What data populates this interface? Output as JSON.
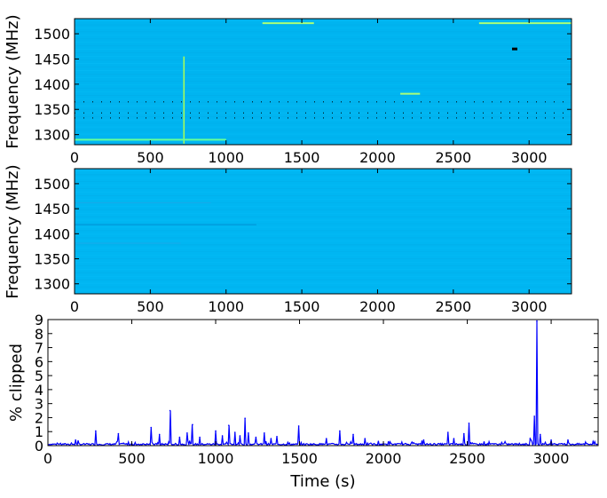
{
  "figure": {
    "top": {
      "ylabel": "Frequency (MHz)",
      "xticks": [
        "0",
        "500",
        "1000",
        "1500",
        "2000",
        "2500",
        "3000"
      ],
      "yticks": [
        "1300",
        "1350",
        "1400",
        "1450",
        "1500"
      ]
    },
    "middle": {
      "ylabel": "Frequency (MHz)",
      "xticks": [
        "0",
        "500",
        "1000",
        "1500",
        "2000",
        "2500",
        "3000"
      ],
      "yticks": [
        "1300",
        "1350",
        "1400",
        "1450",
        "1500"
      ]
    },
    "bottom": {
      "ylabel": "% clipped",
      "xlabel": "Time (s)",
      "xticks": [
        "0",
        "500",
        "1000",
        "1500",
        "2000",
        "2500",
        "3000"
      ],
      "yticks": [
        "0",
        "1",
        "2",
        "3",
        "4",
        "5",
        "6",
        "7",
        "8",
        "9"
      ]
    }
  },
  "chart_data": [
    {
      "type": "heatmap",
      "title": "",
      "xlabel": "",
      "ylabel": "Frequency (MHz)",
      "xlim": [
        0,
        3280
      ],
      "ylim": [
        1280,
        1530
      ],
      "xticks": [
        0,
        500,
        1000,
        1500,
        2000,
        2500,
        3000
      ],
      "yticks": [
        1300,
        1350,
        1400,
        1450,
        1500
      ],
      "background_color": "#00b4f0",
      "features": [
        {
          "kind": "vertical_line",
          "x": 722,
          "y_from": 1282,
          "y_to": 1455,
          "color": "#aaff55"
        },
        {
          "kind": "horizontal_band",
          "x_from": 0,
          "x_to": 1000,
          "y": 1290,
          "color": "#66ff99"
        },
        {
          "kind": "horizontal_band",
          "x_from": 1240,
          "x_to": 1580,
          "y": 1521,
          "color": "#aaff77"
        },
        {
          "kind": "horizontal_band",
          "x_from": 2670,
          "x_to": 3280,
          "y": 1521,
          "color": "#aaff77"
        },
        {
          "kind": "horizontal_band",
          "x_from": 2150,
          "x_to": 2280,
          "y": 1381,
          "color": "#aaff77"
        },
        {
          "kind": "dotted_line",
          "x_from": 0,
          "x_to": 3280,
          "y": 1365,
          "color": "#000000"
        },
        {
          "kind": "dotted_line",
          "x_from": 0,
          "x_to": 3280,
          "y": 1343,
          "color": "#000000"
        },
        {
          "kind": "dotted_line",
          "x_from": 0,
          "x_to": 3280,
          "y": 1333,
          "color": "#000000"
        },
        {
          "kind": "spot",
          "x": 2905,
          "y": 1469,
          "color": "#000000"
        }
      ]
    },
    {
      "type": "heatmap",
      "title": "",
      "xlabel": "",
      "ylabel": "Frequency (MHz)",
      "xlim": [
        0,
        3280
      ],
      "ylim": [
        1280,
        1530
      ],
      "xticks": [
        0,
        500,
        1000,
        1500,
        2000,
        2500,
        3000
      ],
      "yticks": [
        1300,
        1350,
        1400,
        1450,
        1500
      ],
      "background_color": "#00b6f2",
      "features": [
        {
          "kind": "faint_horizontal_band",
          "x_from": 0,
          "x_to": 1200,
          "y": 1418,
          "color": "#0093d6"
        },
        {
          "kind": "faint_horizontal_band",
          "x_from": 0,
          "x_to": 900,
          "y": 1462,
          "color": "#1aa8e8"
        },
        {
          "kind": "faint_horizontal_band",
          "x_from": 0,
          "x_to": 700,
          "y": 1381,
          "color": "#1aa8e8"
        }
      ]
    },
    {
      "type": "line",
      "title": "",
      "xlabel": "Time (s)",
      "ylabel": "% clipped",
      "xlim": [
        0,
        3280
      ],
      "ylim": [
        0,
        9
      ],
      "xticks": [
        0,
        500,
        1000,
        1500,
        2000,
        2500,
        3000
      ],
      "yticks": [
        0,
        1,
        2,
        3,
        4,
        5,
        6,
        7,
        8,
        9
      ],
      "grid": false,
      "series": [
        {
          "color": "#0000ff",
          "baseline": 0.1,
          "spikes": [
            {
              "x": 165,
              "y": 0.4
            },
            {
              "x": 285,
              "y": 1.05
            },
            {
              "x": 420,
              "y": 0.85
            },
            {
              "x": 615,
              "y": 1.3
            },
            {
              "x": 665,
              "y": 0.8
            },
            {
              "x": 728,
              "y": 2.5
            },
            {
              "x": 785,
              "y": 0.6
            },
            {
              "x": 830,
              "y": 0.9
            },
            {
              "x": 862,
              "y": 1.5
            },
            {
              "x": 905,
              "y": 0.6
            },
            {
              "x": 1000,
              "y": 1.05
            },
            {
              "x": 1040,
              "y": 0.7
            },
            {
              "x": 1078,
              "y": 1.45
            },
            {
              "x": 1115,
              "y": 0.95
            },
            {
              "x": 1145,
              "y": 0.7
            },
            {
              "x": 1175,
              "y": 1.95
            },
            {
              "x": 1195,
              "y": 0.9
            },
            {
              "x": 1240,
              "y": 0.6
            },
            {
              "x": 1290,
              "y": 0.9
            },
            {
              "x": 1330,
              "y": 0.5
            },
            {
              "x": 1365,
              "y": 0.65
            },
            {
              "x": 1495,
              "y": 1.4
            },
            {
              "x": 1660,
              "y": 0.5
            },
            {
              "x": 1740,
              "y": 1.05
            },
            {
              "x": 1820,
              "y": 0.8
            },
            {
              "x": 1890,
              "y": 0.5
            },
            {
              "x": 2240,
              "y": 0.4
            },
            {
              "x": 2385,
              "y": 0.95
            },
            {
              "x": 2420,
              "y": 0.5
            },
            {
              "x": 2480,
              "y": 0.85
            },
            {
              "x": 2510,
              "y": 1.6
            },
            {
              "x": 2875,
              "y": 0.5
            },
            {
              "x": 2900,
              "y": 2.1
            },
            {
              "x": 2915,
              "y": 8.9
            },
            {
              "x": 2935,
              "y": 0.8
            },
            {
              "x": 3000,
              "y": 0.4
            },
            {
              "x": 3100,
              "y": 0.4
            },
            {
              "x": 3250,
              "y": 0.3
            }
          ]
        }
      ]
    }
  ]
}
